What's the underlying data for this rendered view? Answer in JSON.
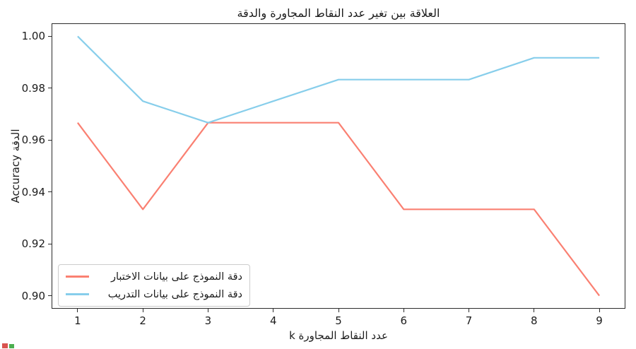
{
  "chart_data": {
    "type": "line",
    "title": "العلاقة بين تغير عدد النقاط المجاورة والدقة",
    "xlabel": "عدد النقاط المجاورة k",
    "ylabel": "الدقة Accuracy",
    "x": [
      1,
      2,
      3,
      4,
      5,
      6,
      7,
      8,
      9
    ],
    "series": [
      {
        "name": "دقة النموذج على بيانات الاختبار",
        "color": "#FA8072",
        "values": [
          0.9667,
          0.9333,
          0.9667,
          0.9667,
          0.9667,
          0.9333,
          0.9333,
          0.9333,
          0.9
        ]
      },
      {
        "name": "دقة النموذج على بيانات التدريب",
        "color": "#87CEEB",
        "values": [
          1.0,
          0.975,
          0.9667,
          0.975,
          0.9833,
          0.9833,
          0.9833,
          0.9917,
          0.9917
        ]
      }
    ],
    "xlim": [
      0.6,
      9.4
    ],
    "ylim": [
      0.895,
      1.005
    ],
    "xticks": [
      1,
      2,
      3,
      4,
      5,
      6,
      7,
      8,
      9
    ],
    "yticks": [
      0.9,
      0.92,
      0.94,
      0.96,
      0.98,
      1.0
    ],
    "grid": false,
    "legend_position": "lower-left",
    "line_width": 2.2,
    "text_color": "#1c1c1c",
    "spine_color": "#2b2b2b"
  },
  "artifacts": {
    "bottom_left_red_dot_color": "#d9534f",
    "bottom_left_green_dot_color": "#4caf50"
  }
}
